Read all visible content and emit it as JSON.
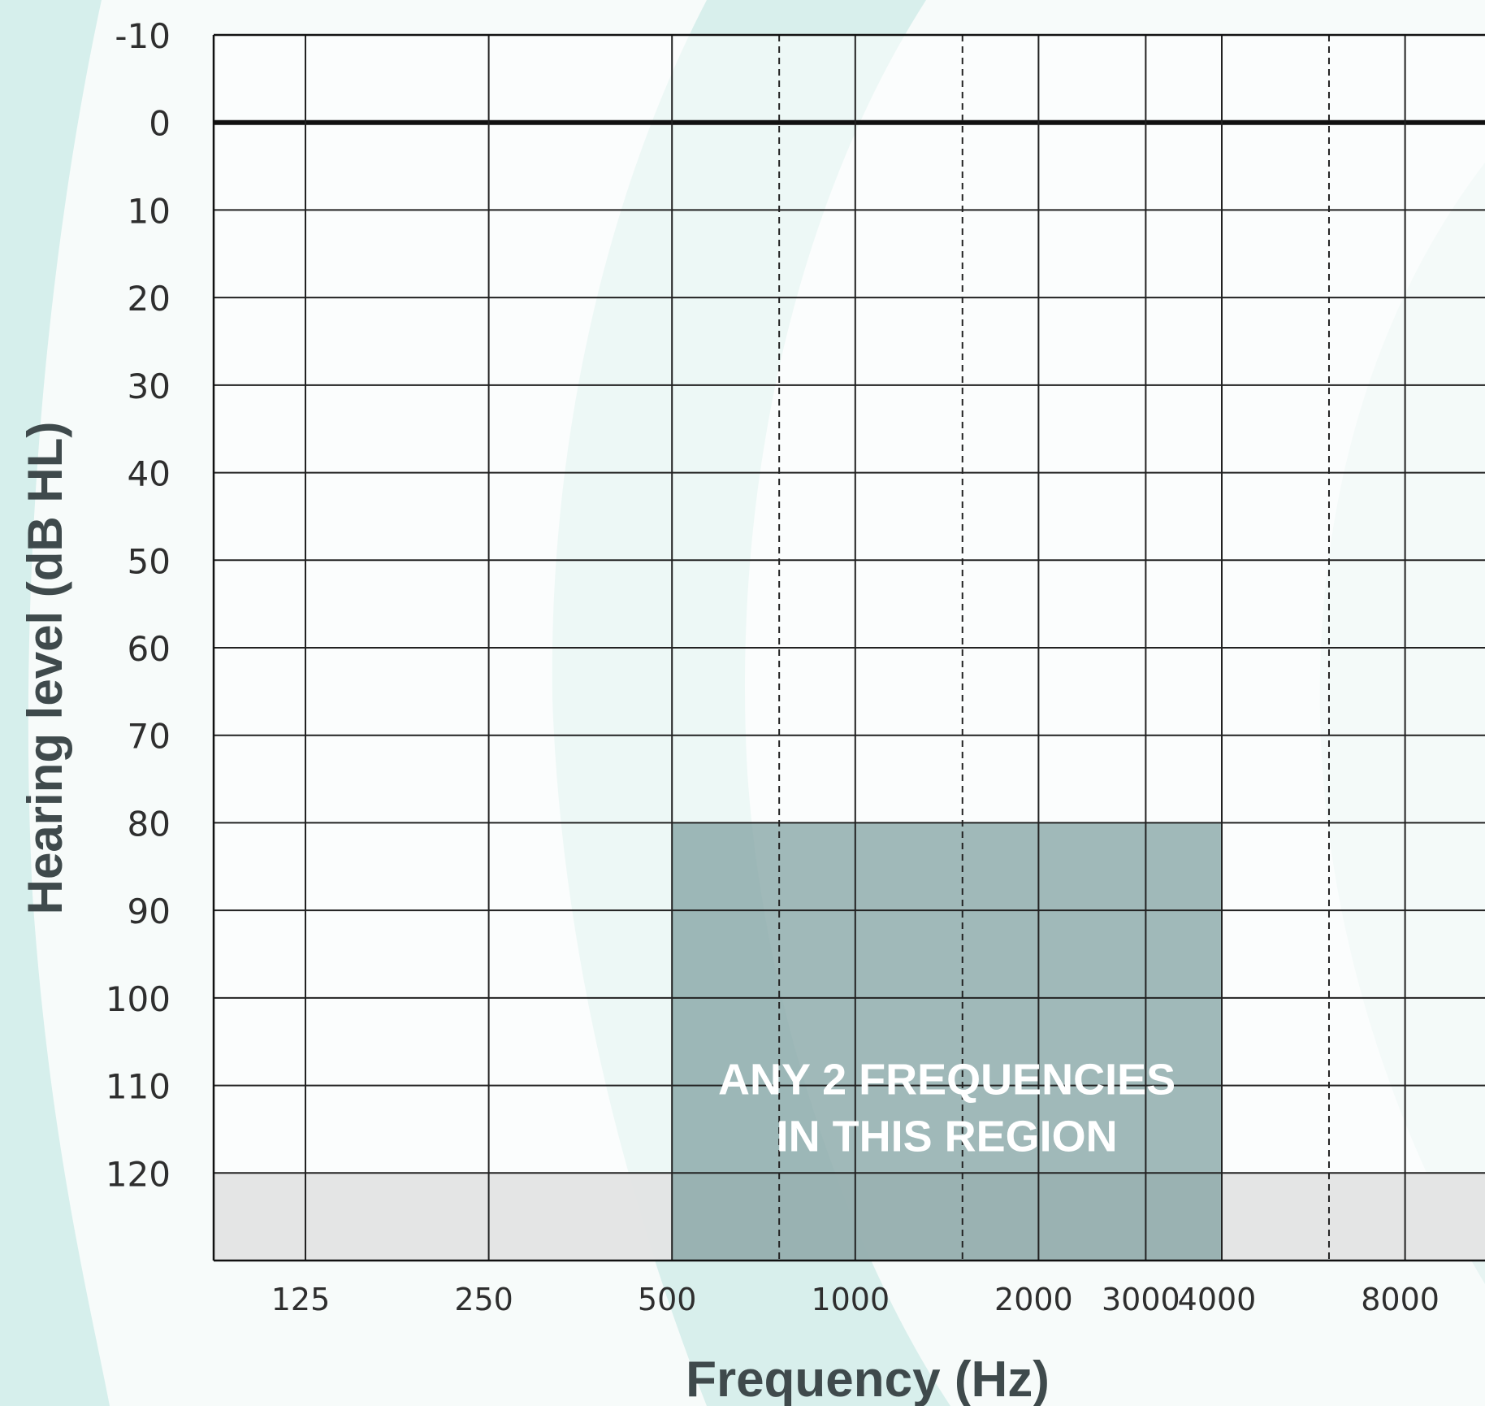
{
  "chart_data": {
    "type": "area",
    "xlabel": "Frequency (Hz)",
    "ylabel": "Hearing level (dB HL)",
    "x_tick_labels": [
      "125",
      "250",
      "500",
      "1000",
      "2000",
      "3000",
      "4000",
      "8000"
    ],
    "y_tick_labels": [
      "-10",
      "0",
      "10",
      "20",
      "30",
      "40",
      "50",
      "60",
      "70",
      "80",
      "90",
      "100",
      "110",
      "120"
    ],
    "ylim": [
      -10,
      130
    ],
    "y_inverted": true,
    "x_scale": "octave",
    "grid": true,
    "dashed_gridlines_hz": [
      750,
      1500,
      6000
    ],
    "reference_line_db": 0,
    "regions": [
      {
        "x_from_hz": 500,
        "x_to_hz": 4000,
        "y_from_db": 80,
        "y_to_db": 130,
        "label_lines": [
          "ANY 2 FREQUENCIES",
          "IN THIS REGION"
        ],
        "color": "#7d9e9e"
      },
      {
        "x_from_hz": 125,
        "x_to_hz": 8000,
        "y_from_db": 120,
        "y_to_db": 130,
        "label_lines": [],
        "color": "#e3e4e4"
      }
    ]
  },
  "colors": {
    "background": "#f7fbfa",
    "decor_teal": "#d6efec",
    "grid": "#222222"
  }
}
